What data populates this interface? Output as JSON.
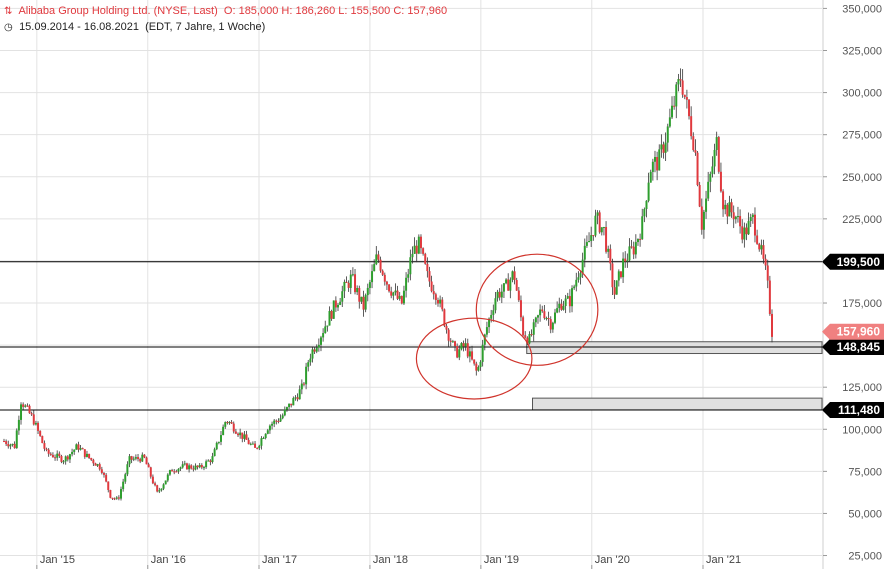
{
  "header": {
    "instrument": "Alibaba Group Holding Ltd. (NYSE, Last)",
    "ohlc": "O: 185,000  H: 186,260  L: 155,500  C: 157,960",
    "range": "15.09.2014 - 16.08.2021",
    "meta": "(EDT, 7 Jahre, 1 Woche)",
    "instrument_icon": "candlestick-icon",
    "range_icon": "clock-icon"
  },
  "colors": {
    "up": "#2e9e2e",
    "down": "#e0393e",
    "grid": "#e2e2e2",
    "level_line": "#000000",
    "zone_fill": "#e0e0e0",
    "ellipse": "#d0342c"
  },
  "chart_data": {
    "type": "candlestick",
    "title": "Alibaba Group Holding Ltd. (NYSE, Last)",
    "xlabel": "",
    "ylabel": "",
    "x_range": [
      "2014-09-15",
      "2021-08-16"
    ],
    "ylim": [
      17000,
      355000
    ],
    "grid": true,
    "y_ticks": [
      25000,
      50000,
      75000,
      100000,
      125000,
      150000,
      175000,
      200000,
      225000,
      250000,
      275000,
      300000,
      325000,
      350000
    ],
    "y_tick_labels": [
      "25,000",
      "50,000",
      "75,000",
      "100,000",
      "125,000",
      "150,000",
      "175,000",
      "200,000",
      "225,000",
      "250,000",
      "275,000",
      "300,000",
      "325,000",
      "350,000"
    ],
    "x_ticks": [
      "2015-01-01",
      "2016-01-01",
      "2017-01-01",
      "2018-01-01",
      "2019-01-01",
      "2020-01-01",
      "2021-01-01"
    ],
    "x_tick_labels": [
      "Jan '15",
      "Jan '16",
      "Jan '17",
      "Jan '18",
      "Jan '19",
      "Jan '20",
      "Jan '21"
    ],
    "last_close": {
      "value": 157960,
      "label": "157,960"
    },
    "levels": [
      {
        "value": 199500,
        "label": "199,500"
      },
      {
        "value": 148845,
        "label": "148,845"
      },
      {
        "value": 111480,
        "label": "111,480"
      }
    ],
    "zones": [
      {
        "x_start": "2019-06-01",
        "low": 145000,
        "high": 152000
      },
      {
        "x_start": "2019-06-20",
        "low": 111500,
        "high": 118500
      }
    ],
    "ellipses": [
      {
        "center_date": "2018-12-10",
        "center_value": 142000,
        "half_width_days": 190,
        "half_height_value": 24000
      },
      {
        "center_date": "2019-07-05",
        "center_value": 171000,
        "half_width_days": 200,
        "half_height_value": 33000
      }
    ],
    "price_path": [
      {
        "date": "2014-09-15",
        "close": 93000
      },
      {
        "date": "2014-10-20",
        "close": 90000
      },
      {
        "date": "2014-11-10",
        "close": 117000
      },
      {
        "date": "2014-12-20",
        "close": 106000
      },
      {
        "date": "2015-02-01",
        "close": 86000
      },
      {
        "date": "2015-04-01",
        "close": 82000
      },
      {
        "date": "2015-05-15",
        "close": 90000
      },
      {
        "date": "2015-06-15",
        "close": 84000
      },
      {
        "date": "2015-08-01",
        "close": 77000
      },
      {
        "date": "2015-09-01",
        "close": 60000
      },
      {
        "date": "2015-09-25",
        "close": 58000
      },
      {
        "date": "2015-11-01",
        "close": 82000
      },
      {
        "date": "2015-12-20",
        "close": 83000
      },
      {
        "date": "2016-02-01",
        "close": 62000
      },
      {
        "date": "2016-03-20",
        "close": 76000
      },
      {
        "date": "2016-05-01",
        "close": 78000
      },
      {
        "date": "2016-06-20",
        "close": 77000
      },
      {
        "date": "2016-08-01",
        "close": 83000
      },
      {
        "date": "2016-09-15",
        "close": 106000
      },
      {
        "date": "2016-11-01",
        "close": 97000
      },
      {
        "date": "2016-12-20",
        "close": 88000
      },
      {
        "date": "2017-02-01",
        "close": 102000
      },
      {
        "date": "2017-03-15",
        "close": 107000
      },
      {
        "date": "2017-04-15",
        "close": 115000
      },
      {
        "date": "2017-05-25",
        "close": 125000
      },
      {
        "date": "2017-06-15",
        "close": 143000
      },
      {
        "date": "2017-07-20",
        "close": 155000
      },
      {
        "date": "2017-08-15",
        "close": 165000
      },
      {
        "date": "2017-09-20",
        "close": 178000
      },
      {
        "date": "2017-11-01",
        "close": 190000
      },
      {
        "date": "2017-12-10",
        "close": 172000
      },
      {
        "date": "2018-01-25",
        "close": 203000
      },
      {
        "date": "2018-03-01",
        "close": 186000
      },
      {
        "date": "2018-04-15",
        "close": 174000
      },
      {
        "date": "2018-05-20",
        "close": 205000
      },
      {
        "date": "2018-06-10",
        "close": 210000
      },
      {
        "date": "2018-07-10",
        "close": 190000
      },
      {
        "date": "2018-08-10",
        "close": 180000
      },
      {
        "date": "2018-09-10",
        "close": 160000
      },
      {
        "date": "2018-10-10",
        "close": 145000
      },
      {
        "date": "2018-11-10",
        "close": 150000
      },
      {
        "date": "2018-12-20",
        "close": 133000
      },
      {
        "date": "2019-01-20",
        "close": 160000
      },
      {
        "date": "2019-02-20",
        "close": 180000
      },
      {
        "date": "2019-03-20",
        "close": 183000
      },
      {
        "date": "2019-04-20",
        "close": 193000
      },
      {
        "date": "2019-05-20",
        "close": 158000
      },
      {
        "date": "2019-06-10",
        "close": 153000
      },
      {
        "date": "2019-07-20",
        "close": 172000
      },
      {
        "date": "2019-08-20",
        "close": 163000
      },
      {
        "date": "2019-09-20",
        "close": 175000
      },
      {
        "date": "2019-10-20",
        "close": 176000
      },
      {
        "date": "2019-11-20",
        "close": 195000
      },
      {
        "date": "2019-12-20",
        "close": 210000
      },
      {
        "date": "2020-01-15",
        "close": 225000
      },
      {
        "date": "2020-02-10",
        "close": 218000
      },
      {
        "date": "2020-03-15",
        "close": 180000
      },
      {
        "date": "2020-04-15",
        "close": 200000
      },
      {
        "date": "2020-05-20",
        "close": 208000
      },
      {
        "date": "2020-06-15",
        "close": 222000
      },
      {
        "date": "2020-07-10",
        "close": 255000
      },
      {
        "date": "2020-08-10",
        "close": 260000
      },
      {
        "date": "2020-09-10",
        "close": 280000
      },
      {
        "date": "2020-10-20",
        "close": 310000
      },
      {
        "date": "2020-11-10",
        "close": 290000
      },
      {
        "date": "2020-12-05",
        "close": 268000
      },
      {
        "date": "2020-12-28",
        "close": 222000
      },
      {
        "date": "2021-01-20",
        "close": 245000
      },
      {
        "date": "2021-02-15",
        "close": 270000
      },
      {
        "date": "2021-03-10",
        "close": 232000
      },
      {
        "date": "2021-04-15",
        "close": 228000
      },
      {
        "date": "2021-05-15",
        "close": 216000
      },
      {
        "date": "2021-06-15",
        "close": 225000
      },
      {
        "date": "2021-07-10",
        "close": 206000
      },
      {
        "date": "2021-07-30",
        "close": 190000
      },
      {
        "date": "2021-08-16",
        "close": 157960
      }
    ]
  }
}
